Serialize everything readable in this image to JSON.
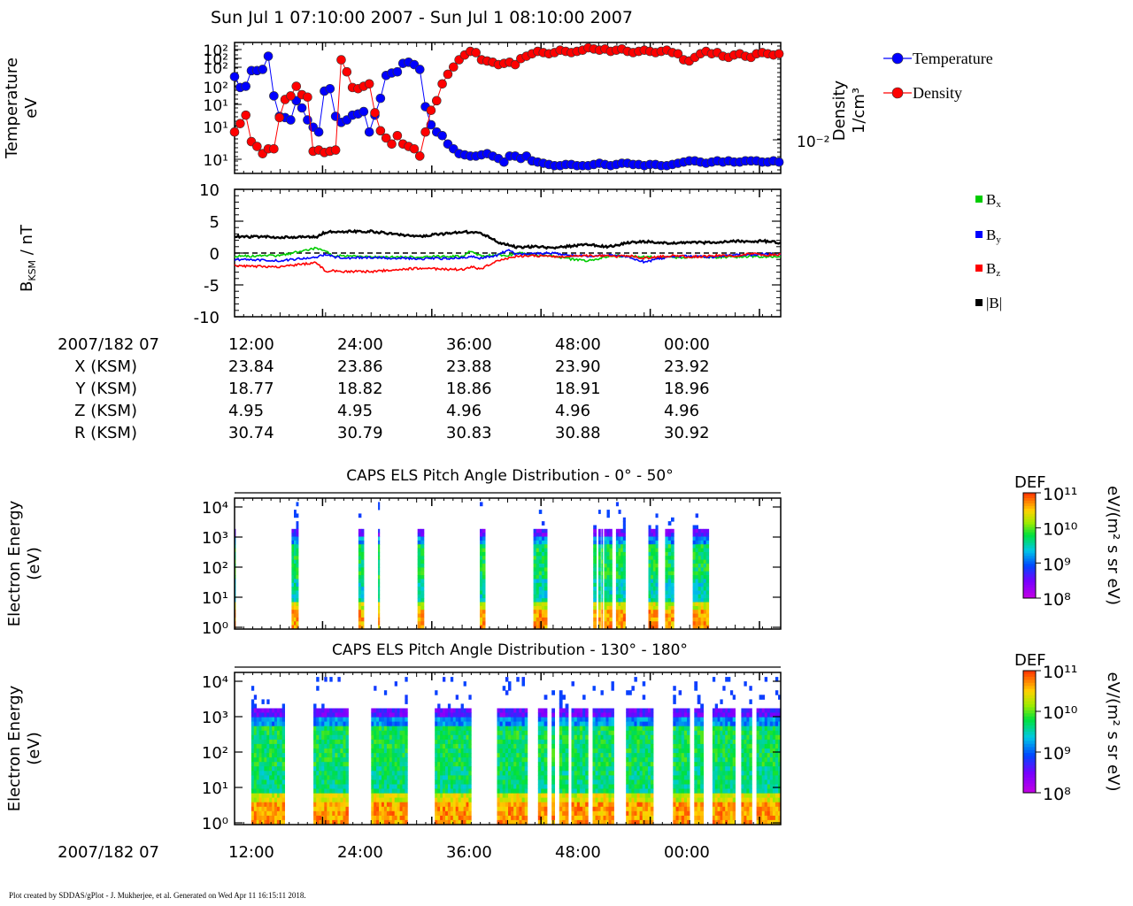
{
  "header": {
    "title": "Sun Jul 1 07:10:00 2007 - Sun Jul 1 08:10:00 2007"
  },
  "colors": {
    "temperature": "#0000ff",
    "density": "#ff0000",
    "bx": "#00cc00",
    "by": "#0000ff",
    "bz": "#ff0000",
    "btot": "#000000"
  },
  "time_axis": {
    "label": "2007/182 07",
    "ticks": [
      "12:00",
      "24:00",
      "36:00",
      "48:00",
      "00:00"
    ]
  },
  "ephemeris": {
    "rows": [
      {
        "label": "X (KSM)",
        "values": [
          "23.84",
          "23.86",
          "23.88",
          "23.90",
          "23.92"
        ]
      },
      {
        "label": "Y (KSM)",
        "values": [
          "18.77",
          "18.82",
          "18.86",
          "18.91",
          "18.96"
        ]
      },
      {
        "label": "Z (KSM)",
        "values": [
          "4.95",
          "4.95",
          "4.96",
          "4.96",
          "4.96"
        ]
      },
      {
        "label": "R (KSM)",
        "values": [
          "30.74",
          "30.79",
          "30.83",
          "30.88",
          "30.92"
        ]
      }
    ]
  },
  "footer": "Plot created by SDDAS/gPlot - J. Mukherjee, et al.  Generated on Wed Apr 11 16:15:11 2018.",
  "chart_data": [
    {
      "type": "scatter",
      "ylabel": "Temperature\neV",
      "y2label": "Density\n1/cm³",
      "y2_tick": "10⁻²",
      "left_ticks": [
        "10²",
        "10²",
        "10²",
        "10²",
        "10¹",
        "10¹",
        "10¹"
      ],
      "legend": [
        "Temperature",
        "Density"
      ],
      "legend_position": "right",
      "x_seconds": [
        0,
        37,
        74,
        111,
        148,
        185,
        222,
        259,
        296,
        333,
        370,
        407,
        444,
        481,
        518,
        555,
        592,
        629,
        666,
        703,
        740,
        777,
        814,
        851,
        888,
        925,
        962,
        999,
        1036,
        1073,
        1110,
        1147,
        1184,
        1221,
        1258,
        1295,
        1332,
        1369,
        1406,
        1443,
        1480,
        1517,
        1554,
        1591,
        1628,
        1665,
        1702,
        1739,
        1776,
        1813,
        1850,
        1887,
        1924,
        1961,
        1998,
        2035,
        2072,
        2109,
        2146,
        2183,
        2220,
        2257,
        2294,
        2331,
        2368,
        2405,
        2442,
        2479,
        2516,
        2553,
        2590,
        2627,
        2664,
        2701,
        2738,
        2775,
        2812,
        2849,
        2886,
        2923,
        2960,
        2997,
        3034,
        3071,
        3108,
        3145,
        3182,
        3219,
        3256,
        3293,
        3330,
        3367,
        3404,
        3441,
        3478,
        3515,
        3552,
        3589
      ],
      "series": [
        {
          "name": "Temperature",
          "values": [
            0.76,
            0.67,
            0.68,
            0.81,
            0.81,
            0.82,
            0.93,
            0.6,
            0.43,
            0.42,
            0.4,
            0.56,
            0.5,
            0.4,
            0.34,
            0.3,
            0.64,
            0.66,
            0.43,
            0.38,
            0.4,
            0.44,
            0.45,
            0.47,
            0.3,
            0.44,
            0.58,
            0.77,
            0.79,
            0.8,
            0.87,
            0.88,
            0.86,
            0.82,
            0.51,
            0.36,
            0.3,
            0.27,
            0.2,
            0.16,
            0.12,
            0.11,
            0.1,
            0.1,
            0.11,
            0.12,
            0.1,
            0.08,
            0.05,
            0.1,
            0.1,
            0.08,
            0.1,
            0.06,
            0.05,
            0.04,
            0.03,
            0.02,
            0.02,
            0.03,
            0.03,
            0.02,
            0.02,
            0.02,
            0.03,
            0.04,
            0.03,
            0.02,
            0.03,
            0.04,
            0.04,
            0.03,
            0.03,
            0.02,
            0.03,
            0.03,
            0.02,
            0.02,
            0.03,
            0.04,
            0.05,
            0.06,
            0.06,
            0.05,
            0.04,
            0.05,
            0.06,
            0.05,
            0.06,
            0.05,
            0.05,
            0.06,
            0.06,
            0.06,
            0.05,
            0.05,
            0.06,
            0.05
          ]
        },
        {
          "name": "Density",
          "values": [
            0.3,
            0.37,
            0.44,
            0.22,
            0.18,
            0.12,
            0.16,
            0.16,
            0.42,
            0.57,
            0.6,
            0.68,
            0.61,
            0.59,
            0.14,
            0.15,
            0.13,
            0.14,
            0.15,
            0.9,
            0.8,
            0.67,
            0.66,
            0.68,
            0.7,
            0.46,
            0.31,
            0.25,
            0.2,
            0.27,
            0.2,
            0.18,
            0.16,
            0.1,
            0.3,
            0.48,
            0.56,
            0.7,
            0.78,
            0.84,
            0.9,
            0.94,
            0.97,
            0.96,
            0.9,
            0.89,
            0.88,
            0.86,
            0.87,
            0.88,
            0.86,
            0.91,
            0.93,
            0.95,
            0.97,
            0.96,
            0.95,
            0.96,
            0.98,
            0.97,
            0.96,
            0.97,
            0.98,
            1.0,
            0.99,
            0.98,
            0.99,
            0.97,
            0.98,
            0.99,
            0.97,
            0.96,
            0.97,
            0.98,
            0.97,
            0.96,
            0.97,
            0.98,
            0.96,
            0.95,
            0.9,
            0.89,
            0.92,
            0.95,
            0.97,
            0.95,
            0.96,
            0.93,
            0.92,
            0.94,
            0.95,
            0.93,
            0.92,
            0.95,
            0.96,
            0.95,
            0.94,
            0.95
          ]
        }
      ]
    },
    {
      "type": "line",
      "ylabel": "B_KSM / nT",
      "ylim": [
        -10,
        10
      ],
      "yticks": [
        10,
        5,
        0,
        -5,
        -10
      ],
      "legend": [
        "Bx",
        "By",
        "Bz",
        "|B|"
      ],
      "legend_position": "right",
      "x_seconds": [
        0,
        300,
        540,
        600,
        660,
        720,
        900,
        1200,
        1500,
        1560,
        1620,
        1740,
        1800,
        1860,
        1980,
        2100,
        2220,
        2340,
        2460,
        2520,
        2580,
        2700,
        2880,
        3000,
        3180,
        3300,
        3420,
        3480,
        3600
      ],
      "series": [
        {
          "name": "Bx",
          "values": [
            -0.5,
            -0.4,
            0.8,
            0.2,
            -0.5,
            -0.4,
            -0.6,
            -0.6,
            -0.5,
            0.3,
            -0.5,
            -0.3,
            -0.4,
            0.0,
            -0.3,
            -0.5,
            -1.0,
            -1.2,
            -0.6,
            -0.4,
            -0.5,
            -0.6,
            -0.7,
            -0.6,
            -0.7,
            -0.6,
            -0.5,
            -0.6,
            -0.5
          ]
        },
        {
          "name": "By",
          "values": [
            -1.0,
            -1.2,
            -0.6,
            -0.2,
            -0.6,
            -0.8,
            -0.7,
            -0.9,
            -0.8,
            -0.5,
            -0.8,
            -0.3,
            0.5,
            -0.2,
            -0.1,
            0.0,
            -0.4,
            -0.5,
            -0.3,
            -0.4,
            -0.5,
            -1.4,
            -0.5,
            -0.5,
            -0.6,
            -0.3,
            -0.3,
            -0.2,
            -0.2
          ]
        },
        {
          "name": "Bz",
          "values": [
            -2.0,
            -2.2,
            -1.5,
            -2.8,
            -2.8,
            -2.9,
            -2.9,
            -2.4,
            -2.6,
            -2.1,
            -2.5,
            -1.2,
            -0.8,
            -0.5,
            -0.4,
            -0.6,
            -0.5,
            -0.4,
            -0.5,
            -0.6,
            -0.4,
            -0.8,
            -0.4,
            -0.6,
            -0.4,
            -0.5,
            0.0,
            -0.3,
            -0.2
          ]
        },
        {
          "name": "|B|",
          "values": [
            2.6,
            2.5,
            2.5,
            3.3,
            3.3,
            3.4,
            3.4,
            2.6,
            3.3,
            3.3,
            3.2,
            1.7,
            1.3,
            0.9,
            1.0,
            0.8,
            1.1,
            1.3,
            1.0,
            1.2,
            1.6,
            1.8,
            1.5,
            1.7,
            1.6,
            1.9,
            1.8,
            1.9,
            1.6
          ]
        }
      ]
    },
    {
      "type": "heatmap",
      "title": "CAPS ELS Pitch Angle Distribution - 0° - 50°",
      "ylabel": "Electron Energy\n(eV)",
      "yticks": [
        "10⁴",
        "10³",
        "10²",
        "10¹",
        "10⁰"
      ],
      "colorbar_label": "DEF",
      "colorbar_units": "eV/(m² s sr eV)",
      "colorbar_ticks": [
        "10¹¹",
        "10¹⁰",
        "10⁹",
        "10⁸"
      ],
      "intervals_seconds": [
        [
          0,
          6
        ],
        [
          376,
          420
        ],
        [
          816,
          852
        ],
        [
          946,
          956
        ],
        [
          1206,
          1248
        ],
        [
          1616,
          1652
        ],
        [
          1970,
          2060
        ],
        [
          2364,
          2384
        ],
        [
          2398,
          2412
        ],
        [
          2418,
          2426
        ],
        [
          2436,
          2488
        ],
        [
          2514,
          2576
        ],
        [
          2728,
          2790
        ],
        [
          2838,
          2896
        ],
        [
          3020,
          3126
        ]
      ]
    },
    {
      "type": "heatmap",
      "title": "CAPS ELS Pitch Angle Distribution - 130° - 180°",
      "ylabel": "Electron Energy\n(eV)",
      "yticks": [
        "10⁴",
        "10³",
        "10²",
        "10¹",
        "10⁰"
      ],
      "colorbar_label": "DEF",
      "colorbar_units": "eV/(m² s sr eV)",
      "colorbar_ticks": [
        "10¹¹",
        "10¹⁰",
        "10⁹",
        "10⁸"
      ],
      "intervals_seconds": [
        [
          110,
          330
        ],
        [
          520,
          750
        ],
        [
          900,
          1140
        ],
        [
          1320,
          1560
        ],
        [
          1730,
          1930
        ],
        [
          2000,
          2060
        ],
        [
          2090,
          2110
        ],
        [
          2140,
          2200
        ],
        [
          2220,
          2330
        ],
        [
          2360,
          2500
        ],
        [
          2580,
          2760
        ],
        [
          2890,
          3000
        ],
        [
          3030,
          3090
        ],
        [
          3150,
          3300
        ],
        [
          3340,
          3410
        ],
        [
          3440,
          3600
        ]
      ]
    }
  ]
}
